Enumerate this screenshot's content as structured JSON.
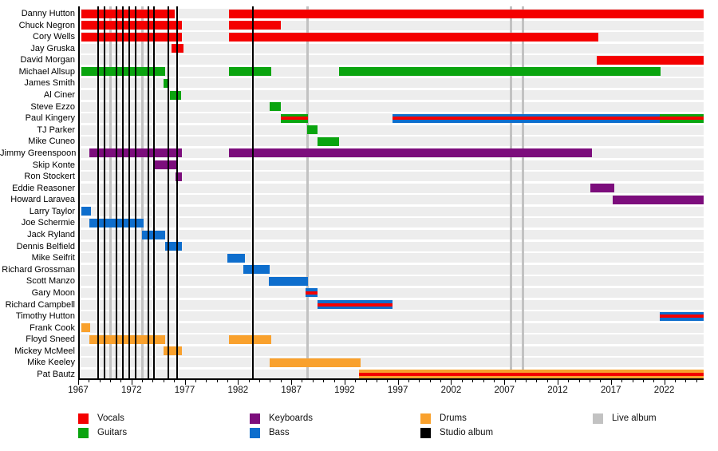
{
  "chart_data": {
    "type": "bar",
    "subtype": "membership-timeline-gantt",
    "title": "",
    "xlabel": "",
    "ylabel": "",
    "axis": {
      "min_year": 1967,
      "max_year": 2025.7,
      "major_ticks": [
        1967,
        1972,
        1977,
        1982,
        1987,
        1992,
        1997,
        2002,
        2007,
        2012,
        2017,
        2022
      ],
      "minor_tick_every_years": 1,
      "grid": false
    },
    "role_colors": {
      "vocals": "#f40000",
      "guitars": "#0aa40f",
      "keyboards": "#7c0d7c",
      "bass": "#0e6ecd",
      "drums": "#f9a12d",
      "studio_album": "#000000",
      "live_album": "#c2c2c2"
    },
    "row_stripe_color": "#ededed",
    "members": [
      {
        "name": "Danny Hutton",
        "segments": [
          {
            "start": 1967.3,
            "end": 1976.05,
            "roles": [
              "vocals"
            ]
          },
          {
            "start": 1981.15,
            "end": 2025.7,
            "roles": [
              "vocals"
            ]
          }
        ]
      },
      {
        "name": "Chuck Negron",
        "segments": [
          {
            "start": 1967.3,
            "end": 1976.75,
            "roles": [
              "vocals"
            ]
          },
          {
            "start": 1981.15,
            "end": 1986.0,
            "roles": [
              "vocals"
            ]
          }
        ]
      },
      {
        "name": "Cory Wells",
        "segments": [
          {
            "start": 1967.3,
            "end": 1976.75,
            "roles": [
              "vocals"
            ]
          },
          {
            "start": 1981.15,
            "end": 2015.8,
            "roles": [
              "vocals"
            ]
          }
        ]
      },
      {
        "name": "Jay Gruska",
        "segments": [
          {
            "start": 1975.75,
            "end": 1976.9,
            "roles": [
              "vocals"
            ]
          }
        ]
      },
      {
        "name": "David Morgan",
        "segments": [
          {
            "start": 2015.65,
            "end": 2025.7,
            "roles": [
              "vocals"
            ]
          }
        ]
      },
      {
        "name": "Michael Allsup",
        "segments": [
          {
            "start": 1967.3,
            "end": 1975.15,
            "roles": [
              "guitars"
            ]
          },
          {
            "start": 1981.15,
            "end": 1985.1,
            "roles": [
              "guitars"
            ]
          },
          {
            "start": 1991.5,
            "end": 2021.65,
            "roles": [
              "guitars"
            ]
          }
        ]
      },
      {
        "name": "James Smith",
        "segments": [
          {
            "start": 1975.0,
            "end": 1975.55,
            "roles": [
              "guitars"
            ]
          }
        ]
      },
      {
        "name": "Al Ciner",
        "segments": [
          {
            "start": 1975.6,
            "end": 1976.65,
            "roles": [
              "guitars"
            ]
          }
        ]
      },
      {
        "name": "Steve Ezzo",
        "segments": [
          {
            "start": 1984.95,
            "end": 1986.0,
            "roles": [
              "guitars"
            ]
          }
        ]
      },
      {
        "name": "Paul Kingery",
        "segments": [
          {
            "start": 1986.0,
            "end": 1988.6,
            "roles": [
              "guitars",
              "vocals"
            ]
          },
          {
            "start": 1996.5,
            "end": 2021.6,
            "roles": [
              "bass",
              "vocals"
            ]
          },
          {
            "start": 2021.6,
            "end": 2025.7,
            "roles": [
              "guitars",
              "vocals"
            ]
          }
        ]
      },
      {
        "name": "TJ Parker",
        "segments": [
          {
            "start": 1988.5,
            "end": 1989.45,
            "roles": [
              "guitars"
            ]
          }
        ]
      },
      {
        "name": "Mike Cuneo",
        "segments": [
          {
            "start": 1989.45,
            "end": 1991.5,
            "roles": [
              "guitars"
            ]
          }
        ]
      },
      {
        "name": "Jimmy Greenspoon",
        "segments": [
          {
            "start": 1968.05,
            "end": 1976.75,
            "roles": [
              "keyboards"
            ]
          },
          {
            "start": 1981.15,
            "end": 2015.2,
            "roles": [
              "keyboards"
            ]
          }
        ]
      },
      {
        "name": "Skip Konte",
        "segments": [
          {
            "start": 1974.05,
            "end": 1976.35,
            "roles": [
              "keyboards"
            ]
          }
        ]
      },
      {
        "name": "Ron Stockert",
        "segments": [
          {
            "start": 1976.15,
            "end": 1976.75,
            "roles": [
              "keyboards"
            ]
          }
        ]
      },
      {
        "name": "Eddie Reasoner",
        "segments": [
          {
            "start": 2015.05,
            "end": 2017.3,
            "roles": [
              "keyboards"
            ]
          }
        ]
      },
      {
        "name": "Howard Laravea",
        "segments": [
          {
            "start": 2017.15,
            "end": 2025.7,
            "roles": [
              "keyboards"
            ]
          }
        ]
      },
      {
        "name": "Larry Taylor",
        "segments": [
          {
            "start": 1967.3,
            "end": 1968.2,
            "roles": [
              "bass"
            ]
          }
        ]
      },
      {
        "name": "Joe Schermie",
        "segments": [
          {
            "start": 1968.05,
            "end": 1973.15,
            "roles": [
              "bass"
            ]
          }
        ]
      },
      {
        "name": "Jack Ryland",
        "segments": [
          {
            "start": 1973.0,
            "end": 1975.15,
            "roles": [
              "bass"
            ]
          }
        ]
      },
      {
        "name": "Dennis Belfield",
        "segments": [
          {
            "start": 1975.15,
            "end": 1976.75,
            "roles": [
              "bass"
            ]
          }
        ]
      },
      {
        "name": "Mike Seifrit",
        "segments": [
          {
            "start": 1981.0,
            "end": 1982.65,
            "roles": [
              "bass"
            ]
          }
        ]
      },
      {
        "name": "Richard Grossman",
        "segments": [
          {
            "start": 1982.5,
            "end": 1984.95,
            "roles": [
              "bass"
            ]
          }
        ]
      },
      {
        "name": "Scott Manzo",
        "segments": [
          {
            "start": 1984.9,
            "end": 1988.6,
            "roles": [
              "bass"
            ]
          }
        ]
      },
      {
        "name": "Gary Moon",
        "segments": [
          {
            "start": 1988.35,
            "end": 1989.45,
            "roles": [
              "bass",
              "vocals"
            ]
          }
        ]
      },
      {
        "name": "Richard Campbell",
        "segments": [
          {
            "start": 1989.45,
            "end": 1996.5,
            "roles": [
              "bass",
              "vocals"
            ]
          }
        ]
      },
      {
        "name": "Timothy Hutton",
        "segments": [
          {
            "start": 2021.6,
            "end": 2025.7,
            "roles": [
              "bass",
              "vocals"
            ]
          }
        ]
      },
      {
        "name": "Frank Cook",
        "segments": [
          {
            "start": 1967.3,
            "end": 1968.1,
            "roles": [
              "drums"
            ]
          }
        ]
      },
      {
        "name": "Floyd Sneed",
        "segments": [
          {
            "start": 1968.05,
            "end": 1975.15,
            "roles": [
              "drums"
            ]
          },
          {
            "start": 1981.15,
            "end": 1985.1,
            "roles": [
              "drums"
            ]
          }
        ]
      },
      {
        "name": "Mickey McMeel",
        "segments": [
          {
            "start": 1975.0,
            "end": 1976.75,
            "roles": [
              "drums"
            ]
          }
        ]
      },
      {
        "name": "Mike Keeley",
        "segments": [
          {
            "start": 1984.95,
            "end": 1993.5,
            "roles": [
              "drums"
            ]
          }
        ]
      },
      {
        "name": "Pat Bautz",
        "segments": [
          {
            "start": 1993.35,
            "end": 2025.7,
            "roles": [
              "drums",
              "vocals"
            ]
          }
        ]
      }
    ],
    "album_markers": {
      "studio": [
        1968.85,
        1969.45,
        1970.6,
        1971.2,
        1971.8,
        1972.4,
        1973.6,
        1974.1,
        1975.45,
        1976.3,
        1983.4
      ],
      "live": [
        1970.0,
        1973.0,
        1988.5,
        2007.6,
        2008.75
      ]
    },
    "legend": [
      {
        "label": "Vocals",
        "color_key": "vocals",
        "col": 0,
        "row": 0
      },
      {
        "label": "Guitars",
        "color_key": "guitars",
        "col": 0,
        "row": 1
      },
      {
        "label": "Keyboards",
        "color_key": "keyboards",
        "col": 1,
        "row": 0
      },
      {
        "label": "Bass",
        "color_key": "bass",
        "col": 1,
        "row": 1
      },
      {
        "label": "Drums",
        "color_key": "drums",
        "col": 2,
        "row": 0
      },
      {
        "label": "Studio album",
        "color_key": "studio_album",
        "col": 2,
        "row": 1
      },
      {
        "label": "Live album",
        "color_key": "live_album",
        "col": 3,
        "row": 0
      }
    ],
    "legend_position": "bottom"
  }
}
